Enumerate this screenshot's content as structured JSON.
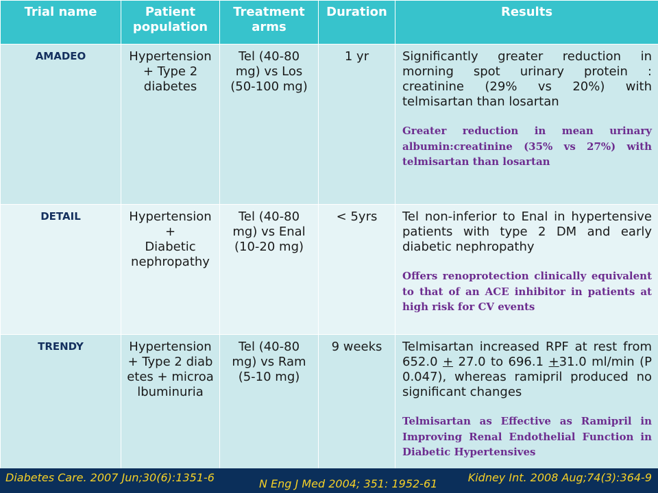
{
  "headers": [
    "Trial name",
    "Patient population",
    "Treatment arms",
    "Duration",
    "Results"
  ],
  "rows": [
    {
      "trial": "AMADEO",
      "population": "Hypertension + Type 2 diabetes",
      "arms": "Tel (40-80 mg)  vs Los (50-100 mg)",
      "duration": "1 yr",
      "result": "Significantly greater reduction in morning spot urinary protein : creatinine (29% vs 20%) with telmisartan than losartan",
      "note": "Greater reduction in mean urinary albumin:creatinine (35% vs 27%) with telmisartan than losartan"
    },
    {
      "trial": "DETAIL",
      "population_lines": [
        "Hypertension",
        "+",
        "Diabetic nephropathy"
      ],
      "arms": "Tel (40-80 mg) vs Enal (10-20 mg)",
      "duration": "< 5yrs",
      "result": "Tel non-inferior to Enal in hypertensive patients with type 2 DM and early diabetic nephropathy",
      "note": "Offers renoprotection clinically equivalent to that of an ACE inhibitor in patients at high risk for CV events"
    },
    {
      "trial": "TRENDY",
      "population": "Hypertension + Type 2 diabetes + microalbuminuria",
      "arms": "Tel (40-80 mg) vs Ram (5-10 mg)",
      "duration": "9 weeks",
      "result_parts": {
        "a": "Telmisartan increased RPF  at rest from 652.0 ",
        "pm1": "+",
        "b": " 27.0 to 696.1 ",
        "pm2": "+",
        "c": "31.0 ml/min (P  0.047), whereas ramipril produced no significant changes"
      },
      "note": "Telmisartan as Effective as Ramipril in Improving Renal Endothelial Function in Diabetic Hypertensives"
    }
  ],
  "footer": {
    "left": "Diabetes Care. 2007 Jun;30(6):1351-6",
    "middle": "N Eng J Med 2004; 351: 1952-61",
    "right": "Kidney Int. 2008 Aug;74(3):364-9"
  },
  "colors": {
    "header_bg": "#37c3cc",
    "row_band_dark": "#cce9ec",
    "row_band_light": "#e6f4f6",
    "trial_name_text": "#14305e",
    "note_text": "#6d2d8f",
    "footer_bg": "#0b2f5a",
    "footer_text": "#f5d027"
  }
}
